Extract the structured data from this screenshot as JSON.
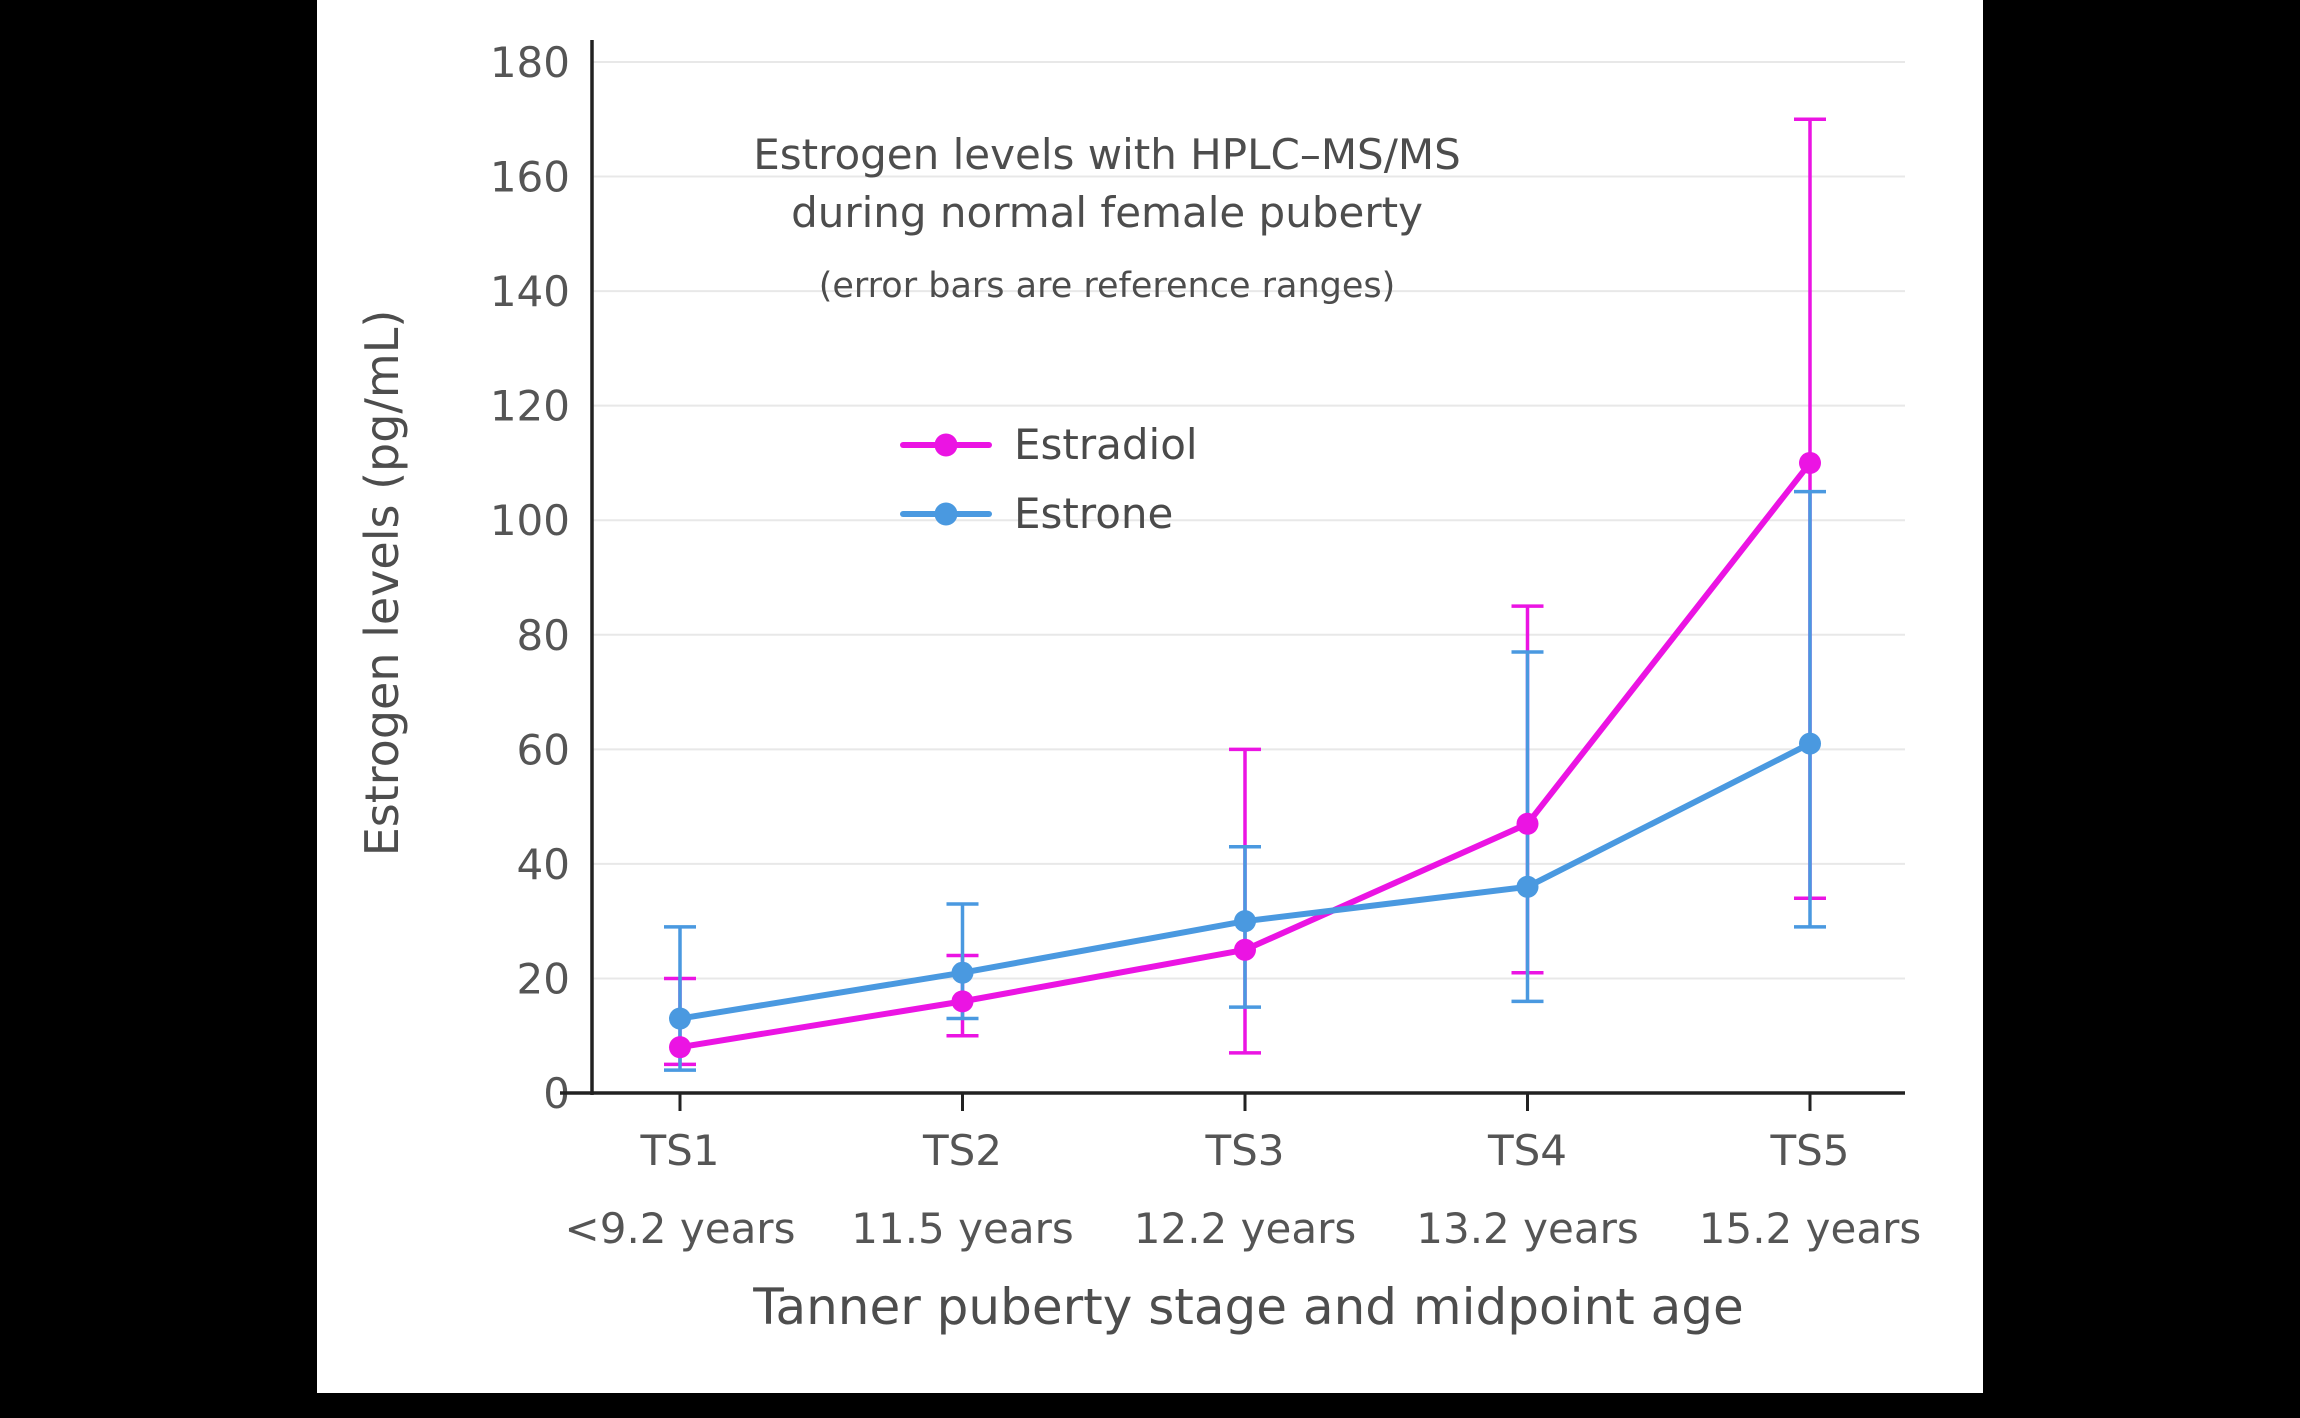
{
  "chart_data": {
    "type": "line",
    "title": "Estrogen levels with HPLC–MS/MS",
    "title_line2": "during normal female puberty",
    "subtitle": "(error bars are reference ranges)",
    "xlabel": "Tanner puberty stage and midpoint age",
    "ylabel": "Estrogen levels (pg/mL)",
    "categories": [
      "TS1",
      "TS2",
      "TS3",
      "TS4",
      "TS5"
    ],
    "category_ages": [
      "<9.2 years",
      "11.5 years",
      "12.2 years",
      "13.2 years",
      "15.2 years"
    ],
    "ylim": [
      0,
      180
    ],
    "ytick_step": 20,
    "grid": true,
    "legend_position": "upper-left-inside",
    "colors": {
      "grid": "#E8E8E8",
      "text": "#555555",
      "axis": "#222222",
      "title": "#4D4D4D"
    },
    "series": [
      {
        "name": "Estradiol",
        "color": "#EB14E3",
        "values": [
          8,
          16,
          25,
          47,
          110
        ],
        "error_low": [
          5,
          10,
          7,
          21,
          34
        ],
        "error_high": [
          20,
          24,
          60,
          85,
          170
        ]
      },
      {
        "name": "Estrone",
        "color": "#4A99E0",
        "values": [
          13,
          21,
          30,
          36,
          61
        ],
        "error_low": [
          4,
          13,
          15,
          16,
          29
        ],
        "error_high": [
          29,
          33,
          43,
          77,
          105
        ]
      }
    ]
  }
}
